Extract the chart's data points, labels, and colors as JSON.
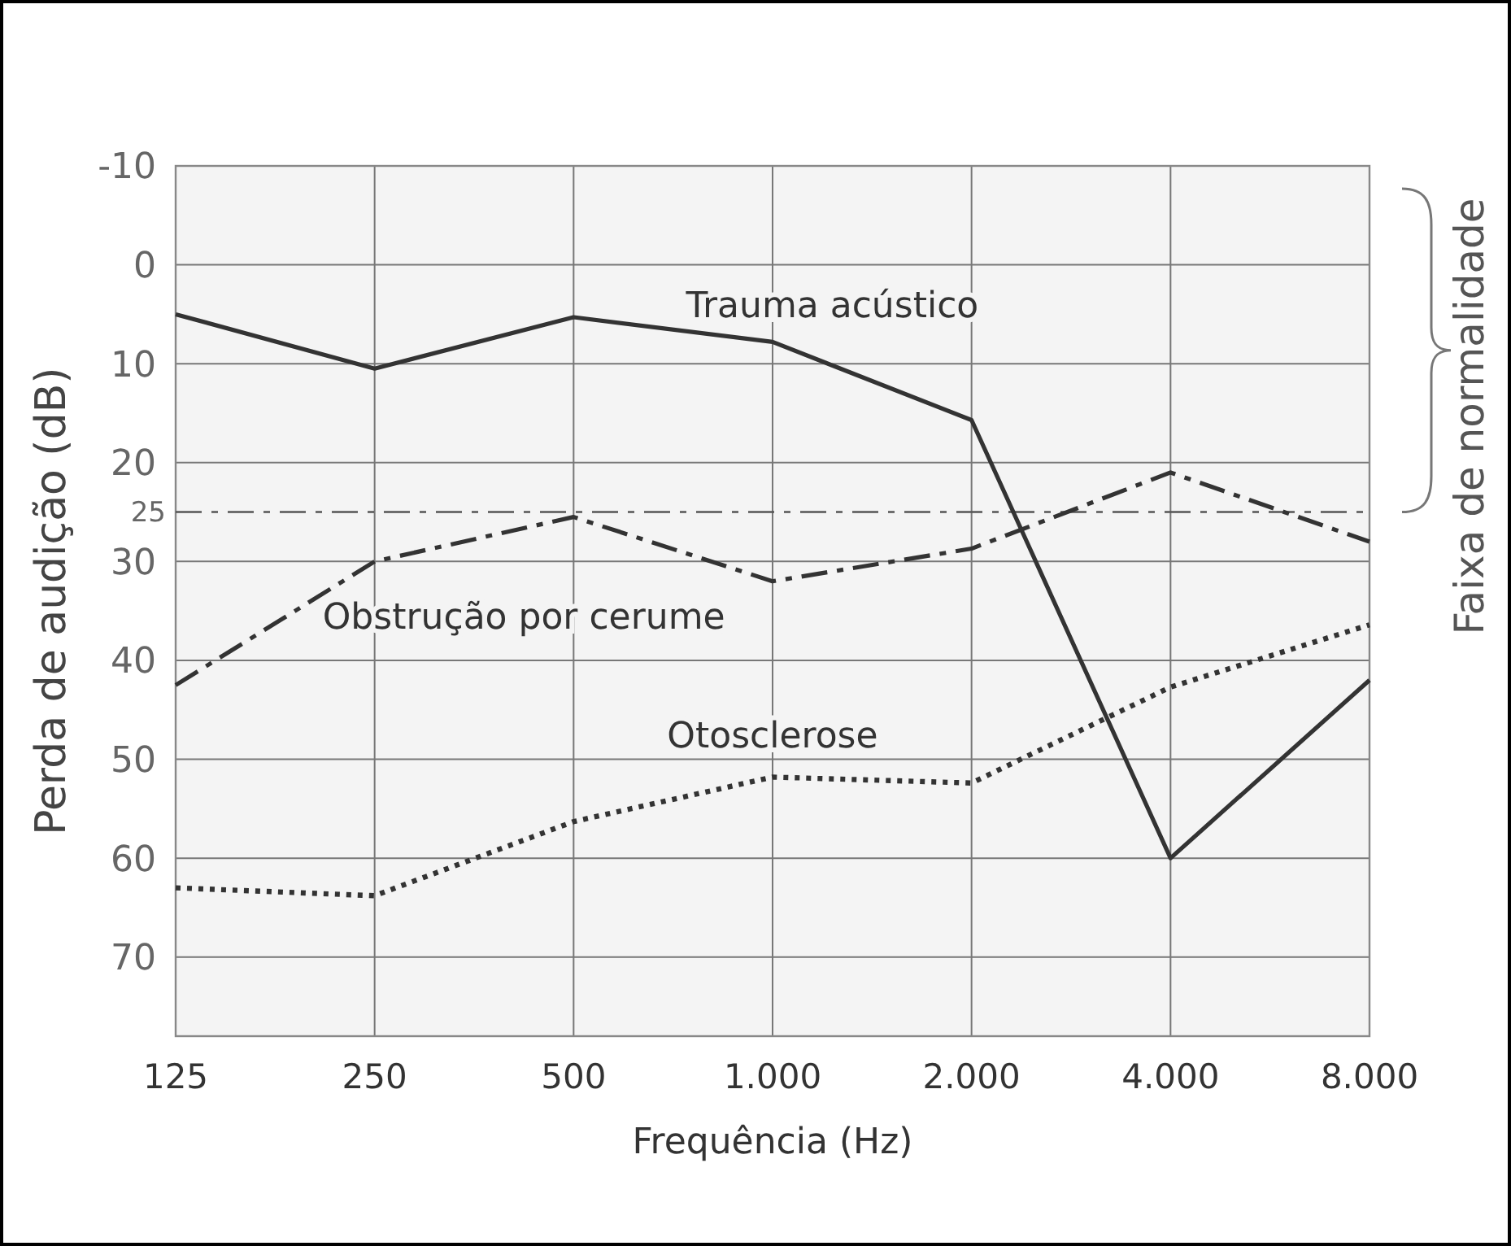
{
  "chart_data": {
    "type": "line",
    "xlabel": "Frequência (Hz)",
    "ylabel": "Perda de audição (dB)",
    "categories": [
      "125",
      "250",
      "500",
      "1.000",
      "2.000",
      "4.000",
      "8.000"
    ],
    "series": [
      {
        "name": "Trauma acústico",
        "color": "#333333",
        "line_style": "solid",
        "values": [
          5,
          10.5,
          5.3,
          7.8,
          15.7,
          60,
          42
        ]
      },
      {
        "name": "Obstrução por cerume",
        "color": "#333333",
        "line_style": "dashed",
        "values": [
          42.5,
          30,
          25.5,
          32,
          28.7,
          21,
          28
        ]
      },
      {
        "name": "Otosclerose",
        "color": "#333333",
        "line_style": "dotted",
        "values": [
          63,
          63.8,
          56.3,
          51.8,
          52.4,
          42.7,
          36.4
        ]
      }
    ],
    "ylim": [
      78,
      -10
    ],
    "yticks": [
      -10,
      0,
      10,
      20,
      30,
      40,
      50,
      60,
      70
    ],
    "grid": true,
    "marker": "none",
    "ref_lines": [
      {
        "axis": "y",
        "value": 25,
        "label": "25",
        "color": "#555555",
        "line_style": "dashed"
      }
    ],
    "annotations": [
      "Faixa de normalidade"
    ]
  }
}
